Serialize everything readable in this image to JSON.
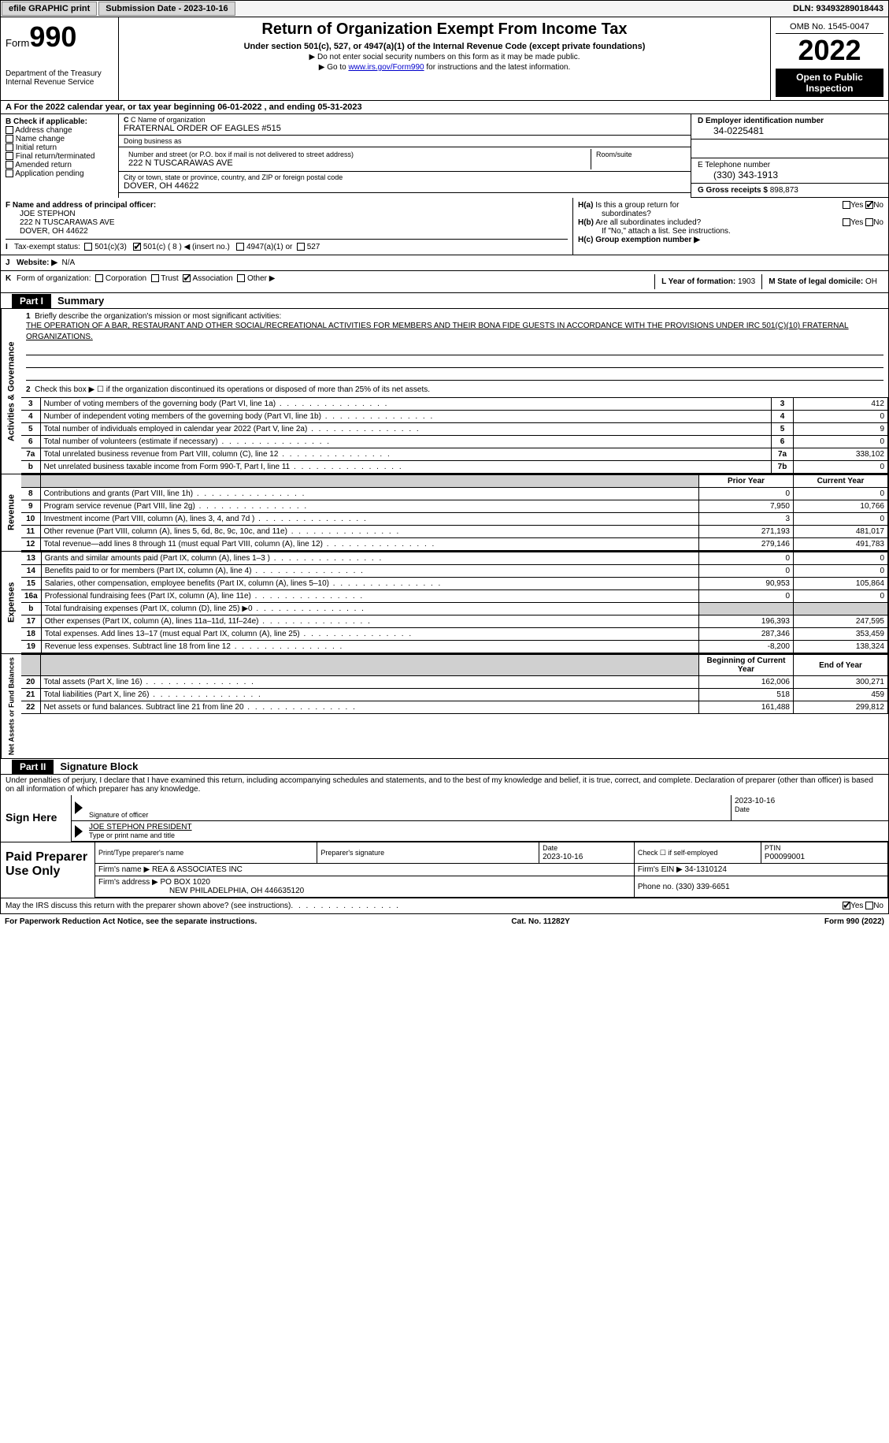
{
  "topbar": {
    "efile": "efile GRAPHIC print",
    "submission_label": "Submission Date - 2023-10-16",
    "dln": "DLN: 93493289018443"
  },
  "header": {
    "form_label": "Form",
    "form_number": "990",
    "dept": "Department of the Treasury",
    "irs": "Internal Revenue Service",
    "title": "Return of Organization Exempt From Income Tax",
    "subtitle": "Under section 501(c), 527, or 4947(a)(1) of the Internal Revenue Code (except private foundations)",
    "note1": "▶ Do not enter social security numbers on this form as it may be made public.",
    "note2_pre": "▶ Go to ",
    "note2_link": "www.irs.gov/Form990",
    "note2_post": " for instructions and the latest information.",
    "omb": "OMB No. 1545-0047",
    "year": "2022",
    "open": "Open to Public Inspection"
  },
  "row_a": "A For the 2022 calendar year, or tax year beginning 06-01-2022    , and ending 05-31-2023",
  "box_b": {
    "title": "B Check if applicable:",
    "items": [
      "Address change",
      "Name change",
      "Initial return",
      "Final return/terminated",
      "Amended return",
      "Application pending"
    ]
  },
  "box_c": {
    "name_label": "C Name of organization",
    "name": "FRATERNAL ORDER OF EAGLES #515",
    "dba_label": "Doing business as",
    "dba": "",
    "street_label": "Number and street (or P.O. box if mail is not delivered to street address)",
    "room_label": "Room/suite",
    "street": "222 N TUSCARAWAS AVE",
    "city_label": "City or town, state or province, country, and ZIP or foreign postal code",
    "city": "DOVER, OH  44622"
  },
  "box_d": {
    "ein_label": "D Employer identification number",
    "ein": "34-0225481",
    "phone_label": "E Telephone number",
    "phone": "(330) 343-1913",
    "gross_label": "G Gross receipts $",
    "gross": "898,873"
  },
  "box_f": {
    "label": "F Name and address of principal officer:",
    "name": "JOE STEPHON",
    "street": "222 N TUSCARAWAS AVE",
    "city": "DOVER, OH  44622"
  },
  "box_h": {
    "ha_label": "H(a)  Is this a group return for subordinates?",
    "ha_yes": "Yes",
    "ha_no": "No",
    "hb_label": "H(b)  Are all subordinates included?",
    "hb_yes": "Yes",
    "hb_no": "No",
    "hb_note": "If \"No,\" attach a list. See instructions.",
    "hc_label": "H(c)  Group exemption number ▶"
  },
  "row_i": {
    "label": "I",
    "text": "Tax-exempt status:",
    "opts": [
      "501(c)(3)",
      "501(c) ( 8 ) ◀ (insert no.)",
      "4947(a)(1) or",
      "527"
    ]
  },
  "row_j": {
    "label": "J",
    "text": "Website: ▶",
    "val": "N/A"
  },
  "row_k": {
    "label": "K",
    "text": "Form of organization:",
    "opts": [
      "Corporation",
      "Trust",
      "Association",
      "Other ▶"
    ],
    "l_label": "L Year of formation:",
    "l_val": "1903",
    "m_label": "M State of legal domicile:",
    "m_val": "OH"
  },
  "part1": {
    "header": "Part I",
    "title": "Summary",
    "line1_label": "1",
    "line1_text": "Briefly describe the organization's mission or most significant activities:",
    "mission": "THE OPERATION OF A BAR, RESTAURANT AND OTHER SOCIAL/RECREATIONAL ACTIVITIES FOR MEMBERS AND THEIR BONA FIDE GUESTS IN ACCORDANCE WITH THE PROVISIONS UNDER IRC 501(C)(10) FRATERNAL ORGANIZATIONS.",
    "line2": "Check this box ▶ ☐ if the organization discontinued its operations or disposed of more than 25% of its net assets.",
    "vlabel_activities": "Activities & Governance",
    "vlabel_revenue": "Revenue",
    "vlabel_expenses": "Expenses",
    "vlabel_netassets": "Net Assets or Fund Balances",
    "rows_ag": [
      {
        "n": "3",
        "d": "Number of voting members of the governing body (Part VI, line 1a)",
        "b": "3",
        "v": "412"
      },
      {
        "n": "4",
        "d": "Number of independent voting members of the governing body (Part VI, line 1b)",
        "b": "4",
        "v": "0"
      },
      {
        "n": "5",
        "d": "Total number of individuals employed in calendar year 2022 (Part V, line 2a)",
        "b": "5",
        "v": "9"
      },
      {
        "n": "6",
        "d": "Total number of volunteers (estimate if necessary)",
        "b": "6",
        "v": "0"
      },
      {
        "n": "7a",
        "d": "Total unrelated business revenue from Part VIII, column (C), line 12",
        "b": "7a",
        "v": "338,102"
      },
      {
        "n": "b",
        "d": "Net unrelated business taxable income from Form 990-T, Part I, line 11",
        "b": "7b",
        "v": "0"
      }
    ],
    "hdr_prior": "Prior Year",
    "hdr_current": "Current Year",
    "rows_rev": [
      {
        "n": "8",
        "d": "Contributions and grants (Part VIII, line 1h)",
        "p": "0",
        "c": "0"
      },
      {
        "n": "9",
        "d": "Program service revenue (Part VIII, line 2g)",
        "p": "7,950",
        "c": "10,766"
      },
      {
        "n": "10",
        "d": "Investment income (Part VIII, column (A), lines 3, 4, and 7d )",
        "p": "3",
        "c": "0"
      },
      {
        "n": "11",
        "d": "Other revenue (Part VIII, column (A), lines 5, 6d, 8c, 9c, 10c, and 11e)",
        "p": "271,193",
        "c": "481,017"
      },
      {
        "n": "12",
        "d": "Total revenue—add lines 8 through 11 (must equal Part VIII, column (A), line 12)",
        "p": "279,146",
        "c": "491,783"
      }
    ],
    "rows_exp": [
      {
        "n": "13",
        "d": "Grants and similar amounts paid (Part IX, column (A), lines 1–3 )",
        "p": "0",
        "c": "0"
      },
      {
        "n": "14",
        "d": "Benefits paid to or for members (Part IX, column (A), line 4)",
        "p": "0",
        "c": "0"
      },
      {
        "n": "15",
        "d": "Salaries, other compensation, employee benefits (Part IX, column (A), lines 5–10)",
        "p": "90,953",
        "c": "105,864"
      },
      {
        "n": "16a",
        "d": "Professional fundraising fees (Part IX, column (A), line 11e)",
        "p": "0",
        "c": "0"
      },
      {
        "n": "b",
        "d": "Total fundraising expenses (Part IX, column (D), line 25) ▶0",
        "p": "grey",
        "c": "grey"
      },
      {
        "n": "17",
        "d": "Other expenses (Part IX, column (A), lines 11a–11d, 11f–24e)",
        "p": "196,393",
        "c": "247,595"
      },
      {
        "n": "18",
        "d": "Total expenses. Add lines 13–17 (must equal Part IX, column (A), line 25)",
        "p": "287,346",
        "c": "353,459"
      },
      {
        "n": "19",
        "d": "Revenue less expenses. Subtract line 18 from line 12",
        "p": "-8,200",
        "c": "138,324"
      }
    ],
    "hdr_begin": "Beginning of Current Year",
    "hdr_end": "End of Year",
    "rows_na": [
      {
        "n": "20",
        "d": "Total assets (Part X, line 16)",
        "p": "162,006",
        "c": "300,271"
      },
      {
        "n": "21",
        "d": "Total liabilities (Part X, line 26)",
        "p": "518",
        "c": "459"
      },
      {
        "n": "22",
        "d": "Net assets or fund balances. Subtract line 21 from line 20",
        "p": "161,488",
        "c": "299,812"
      }
    ]
  },
  "part2": {
    "header": "Part II",
    "title": "Signature Block",
    "declaration": "Under penalties of perjury, I declare that I have examined this return, including accompanying schedules and statements, and to the best of my knowledge and belief, it is true, correct, and complete. Declaration of preparer (other than officer) is based on all information of which preparer has any knowledge.",
    "sign_here": "Sign Here",
    "sig_officer": "Signature of officer",
    "sig_date": "2023-10-16",
    "date_label": "Date",
    "officer_name": "JOE STEPHON PRESIDENT",
    "type_label": "Type or print name and title",
    "paid_preparer": "Paid Preparer Use Only",
    "prep_name_label": "Print/Type preparer's name",
    "prep_sig_label": "Preparer's signature",
    "prep_date_label": "Date",
    "prep_date": "2023-10-16",
    "check_self": "Check ☐ if self-employed",
    "ptin_label": "PTIN",
    "ptin": "P00099001",
    "firm_name_label": "Firm's name    ▶",
    "firm_name": "REA & ASSOCIATES INC",
    "firm_ein_label": "Firm's EIN ▶",
    "firm_ein": "34-1310124",
    "firm_addr_label": "Firm's address ▶",
    "firm_addr1": "PO BOX 1020",
    "firm_addr2": "NEW PHILADELPHIA, OH  446635120",
    "firm_phone_label": "Phone no.",
    "firm_phone": "(330) 339-6651",
    "discuss": "May the IRS discuss this return with the preparer shown above? (see instructions)",
    "yes": "Yes",
    "no": "No"
  },
  "footer": {
    "left": "For Paperwork Reduction Act Notice, see the separate instructions.",
    "mid": "Cat. No. 11282Y",
    "right": "Form 990 (2022)"
  }
}
